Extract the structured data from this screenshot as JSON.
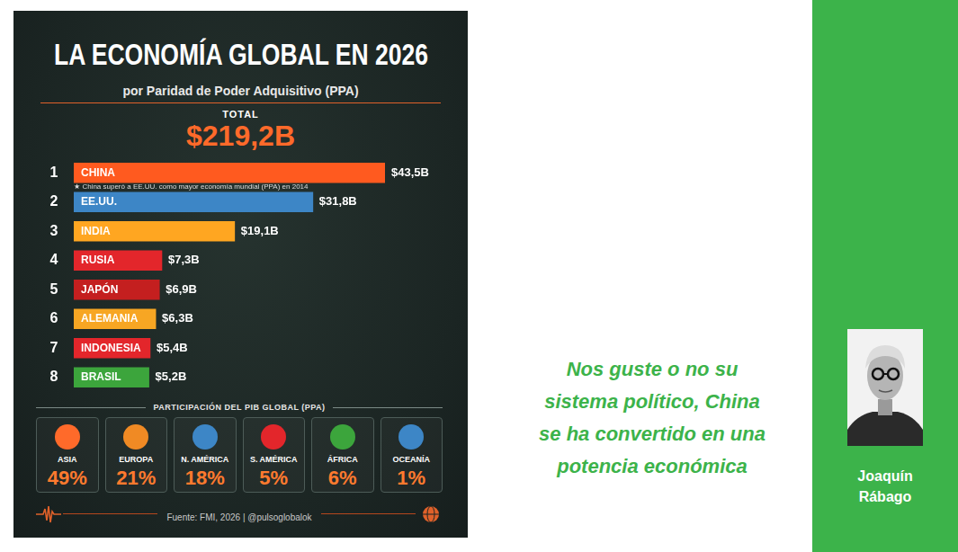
{
  "chart_data": {
    "type": "bar",
    "orientation": "horizontal",
    "title": "LA ECONOMÍA GLOBAL EN 2026",
    "subtitle": "por Paridad de Poder Adquisitivo (PPA)",
    "total": {
      "label": "TOTAL",
      "value": 219.2,
      "value_label": "$219,2B"
    },
    "ranks": [
      1,
      2,
      3,
      4,
      5,
      6,
      7,
      8
    ],
    "categories": [
      "CHINA",
      "EE.UU.",
      "INDIA",
      "RUSIA",
      "JAPÓN",
      "ALEMANIA",
      "INDONESIA",
      "BRASIL"
    ],
    "values": [
      43.5,
      31.8,
      19.1,
      7.3,
      6.9,
      6.3,
      5.4,
      5.2
    ],
    "value_labels": [
      "$43,5B",
      "$31,8B",
      "$19,1B",
      "$7,3B",
      "$6,9B",
      "$6,3B",
      "$5,4B",
      "$5,2B"
    ],
    "colors": [
      "#ff5a1f",
      "#3d86c6",
      "#ffa621",
      "#e3262b",
      "#c41f1f",
      "#f7a623",
      "#e3262b",
      "#3ca53c"
    ],
    "annotation": "★ China superó a EE.UU. como mayor economía mundial (PPA) en 2014",
    "xlim": [
      -7,
      43.5
    ],
    "data_labels": true,
    "tick_labels": false,
    "grid": false,
    "shares": {
      "title": "PARTICIPACIÓN DEL PIB GLOBAL (PPA)",
      "categories": [
        "ASIA",
        "EUROPA",
        "N. AMÉRICA",
        "S. AMÉRICA",
        "ÁFRICA",
        "OCEANÍA"
      ],
      "values": [
        49,
        21,
        18,
        5,
        6,
        1
      ],
      "value_labels": [
        "49%",
        "21%",
        "18%",
        "5%",
        "6%",
        "1%"
      ]
    },
    "source": "Fuente: FMI, 2026  |  @pulsoglobalok"
  },
  "quote_lines": [
    "Nos guste o no su",
    "sistema político, China",
    "se ha convertido en una",
    "potencia económica"
  ],
  "author": "Joaquín Rábago"
}
